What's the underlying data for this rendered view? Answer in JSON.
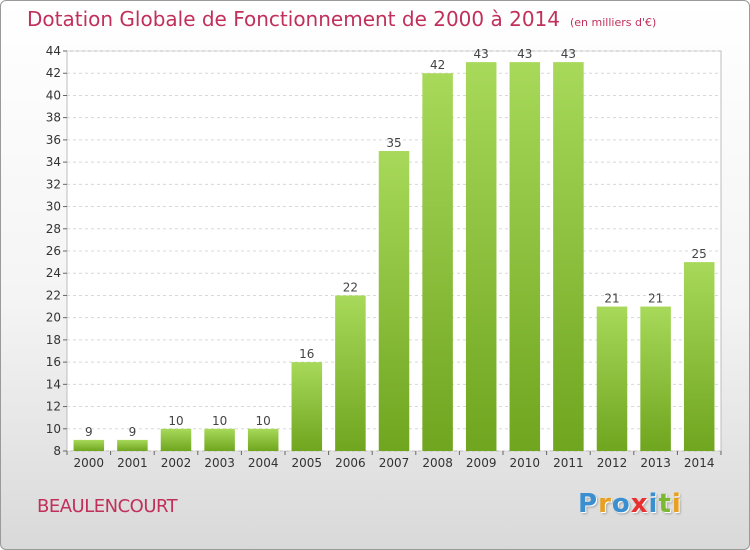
{
  "chart_data": {
    "type": "bar",
    "title": "Dotation Globale de Fonctionnement de 2000 à 2014",
    "subtitle": "(en milliers d'€)",
    "categories": [
      "2000",
      "2001",
      "2002",
      "2003",
      "2004",
      "2005",
      "2006",
      "2007",
      "2008",
      "2009",
      "2010",
      "2011",
      "2012",
      "2013",
      "2014"
    ],
    "values": [
      9,
      9,
      10,
      10,
      10,
      16,
      22,
      35,
      42,
      43,
      43,
      43,
      21,
      21,
      25
    ],
    "ylim": [
      8,
      44
    ],
    "yticks": [
      8,
      10,
      12,
      14,
      16,
      18,
      20,
      22,
      24,
      26,
      28,
      30,
      32,
      34,
      36,
      38,
      40,
      42,
      44
    ],
    "grid": true,
    "colors": {
      "bar_top": "#a8d95a",
      "bar_bottom": "#6fa51f",
      "title": "#c0305a"
    }
  },
  "footer": {
    "commune": "BEAULENCOURT",
    "logo": "Proxiti",
    "logo_colors": [
      "#3a8fd1",
      "#e8a020",
      "#3a8fd1",
      "#e83030",
      "#3a8fd1",
      "#7cb832",
      "#e8a020"
    ]
  }
}
